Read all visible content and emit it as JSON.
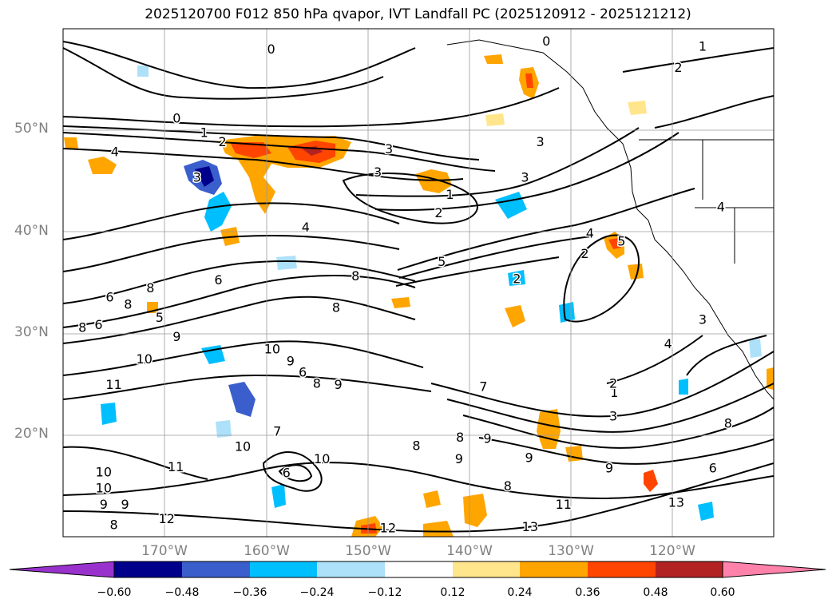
{
  "title": "2025120700 F012 850 hPa qvapor, IVT Landfall PC (2025120912 - 2025121212)",
  "lat_labels": [
    "50°N",
    "40°N",
    "30°N",
    "20°N"
  ],
  "lon_labels": [
    "170°W",
    "160°W",
    "150°W",
    "140°W",
    "130°W",
    "120°W"
  ],
  "chart_data": {
    "type": "filled-contour-map",
    "title": "2025120700 F012 850 hPa qvapor, IVT Landfall PC (2025120912 - 2025121212)",
    "projection": "PlateCarree",
    "lon_range": [
      -180,
      -110
    ],
    "lat_range": [
      10,
      60
    ],
    "gridlines_lon": [
      -170,
      -160,
      -150,
      -140,
      -130,
      -120
    ],
    "gridlines_lat": [
      20,
      30,
      40,
      50
    ],
    "colorbar": {
      "levels": [
        -0.6,
        -0.48,
        -0.36,
        -0.24,
        -0.12,
        0.12,
        0.24,
        0.36,
        0.48,
        0.6
      ],
      "tick_labels": [
        "−0.60",
        "−0.48",
        "−0.36",
        "−0.24",
        "−0.12",
        "0.12",
        "0.24",
        "0.36",
        "0.48",
        "0.60"
      ],
      "colors": [
        "#9932CC",
        "#00008B",
        "#3A5FCD",
        "#00BFFF",
        "#ADE1FA",
        "#FFFFFF",
        "#FFE68C",
        "#FFA500",
        "#FF4500",
        "#B22222",
        "#FF82AB"
      ],
      "extend": "both"
    },
    "contour_labels": [
      {
        "text": "0",
        "lon": -168.8,
        "lat": 51.1
      },
      {
        "text": "0",
        "lon": -159.5,
        "lat": 57.9
      },
      {
        "text": "0",
        "lon": -132.4,
        "lat": 58.7
      },
      {
        "text": "1",
        "lon": -166.1,
        "lat": 49.7
      },
      {
        "text": "1",
        "lon": -117.0,
        "lat": 58.2
      },
      {
        "text": "1",
        "lon": -141.9,
        "lat": 43.6
      },
      {
        "text": "1",
        "lon": -125.7,
        "lat": 24.1
      },
      {
        "text": "2",
        "lon": -164.3,
        "lat": 48.8
      },
      {
        "text": "2",
        "lon": -119.4,
        "lat": 56.1
      },
      {
        "text": "2",
        "lon": -143.0,
        "lat": 41.8
      },
      {
        "text": "2",
        "lon": -128.6,
        "lat": 37.8
      },
      {
        "text": "2",
        "lon": -135.3,
        "lat": 35.3
      },
      {
        "text": "2",
        "lon": -125.8,
        "lat": 25.0
      },
      {
        "text": "3",
        "lon": -147.9,
        "lat": 48.1
      },
      {
        "text": "3",
        "lon": -149.0,
        "lat": 45.8
      },
      {
        "text": "3",
        "lon": -166.8,
        "lat": 45.3
      },
      {
        "text": "3",
        "lon": -134.5,
        "lat": 45.3
      },
      {
        "text": "3",
        "lon": -133.0,
        "lat": 48.8
      },
      {
        "text": "3",
        "lon": -125.8,
        "lat": 21.8
      },
      {
        "text": "3",
        "lon": -125.8,
        "lat": 21.8
      },
      {
        "text": "3",
        "lon": -117.0,
        "lat": 31.3
      },
      {
        "text": "4",
        "lon": -174.9,
        "lat": 47.8
      },
      {
        "text": "4",
        "lon": -156.1,
        "lat": 40.4
      },
      {
        "text": "4",
        "lon": -128.1,
        "lat": 39.8
      },
      {
        "text": "4",
        "lon": -115.2,
        "lat": 42.4
      },
      {
        "text": "4",
        "lon": -120.4,
        "lat": 28.9
      },
      {
        "text": "5",
        "lon": -142.7,
        "lat": 37.0
      },
      {
        "text": "5",
        "lon": -125.0,
        "lat": 39.0
      },
      {
        "text": "5",
        "lon": -170.5,
        "lat": 31.5
      },
      {
        "text": "6",
        "lon": -175.4,
        "lat": 33.5
      },
      {
        "text": "6",
        "lon": -176.5,
        "lat": 30.8
      },
      {
        "text": "6",
        "lon": -164.7,
        "lat": 35.2
      },
      {
        "text": "6",
        "lon": -158.0,
        "lat": 16.2
      },
      {
        "text": "6",
        "lon": -156.4,
        "lat": 26.1
      },
      {
        "text": "6",
        "lon": -116.0,
        "lat": 16.7
      },
      {
        "text": "7",
        "lon": -138.6,
        "lat": 24.7
      },
      {
        "text": "7",
        "lon": -158.9,
        "lat": 20.3
      },
      {
        "text": "8",
        "lon": -171.4,
        "lat": 34.4
      },
      {
        "text": "8",
        "lon": -173.6,
        "lat": 32.8
      },
      {
        "text": "8",
        "lon": -178.1,
        "lat": 30.5
      },
      {
        "text": "8",
        "lon": -151.2,
        "lat": 35.6
      },
      {
        "text": "8",
        "lon": -153.1,
        "lat": 32.5
      },
      {
        "text": "8",
        "lon": -155.0,
        "lat": 25.0
      },
      {
        "text": "8",
        "lon": -145.2,
        "lat": 18.9
      },
      {
        "text": "8",
        "lon": -140.9,
        "lat": 19.7
      },
      {
        "text": "8",
        "lon": -114.5,
        "lat": 21.1
      },
      {
        "text": "8",
        "lon": -175.0,
        "lat": 11.1
      },
      {
        "text": "8",
        "lon": -136.2,
        "lat": 14.9
      },
      {
        "text": "9",
        "lon": -168.8,
        "lat": 29.6
      },
      {
        "text": "9",
        "lon": -157.6,
        "lat": 27.2
      },
      {
        "text": "9",
        "lon": -152.9,
        "lat": 24.9
      },
      {
        "text": "9",
        "lon": -138.2,
        "lat": 19.6
      },
      {
        "text": "9",
        "lon": -141.0,
        "lat": 17.6
      },
      {
        "text": "9",
        "lon": -134.1,
        "lat": 17.7
      },
      {
        "text": "9",
        "lon": -126.2,
        "lat": 16.7
      },
      {
        "text": "9",
        "lon": -176.0,
        "lat": 13.1
      },
      {
        "text": "9",
        "lon": -173.9,
        "lat": 13.1
      },
      {
        "text": "10",
        "lon": -172.0,
        "lat": 27.4
      },
      {
        "text": "10",
        "lon": -162.3,
        "lat": 18.8
      },
      {
        "text": "10",
        "lon": -154.5,
        "lat": 17.6
      },
      {
        "text": "10",
        "lon": -159.4,
        "lat": 28.4
      },
      {
        "text": "10",
        "lon": -176.0,
        "lat": 16.3
      },
      {
        "text": "10",
        "lon": -176.0,
        "lat": 14.7
      },
      {
        "text": "11",
        "lon": -175.0,
        "lat": 24.9
      },
      {
        "text": "11",
        "lon": -168.9,
        "lat": 16.8
      },
      {
        "text": "11",
        "lon": -130.7,
        "lat": 13.1
      },
      {
        "text": "12",
        "lon": -169.8,
        "lat": 11.7
      },
      {
        "text": "12",
        "lon": -148.0,
        "lat": 10.8
      },
      {
        "text": "13",
        "lon": -134.0,
        "lat": 10.9
      },
      {
        "text": "13",
        "lon": -119.6,
        "lat": 13.3
      }
    ]
  }
}
